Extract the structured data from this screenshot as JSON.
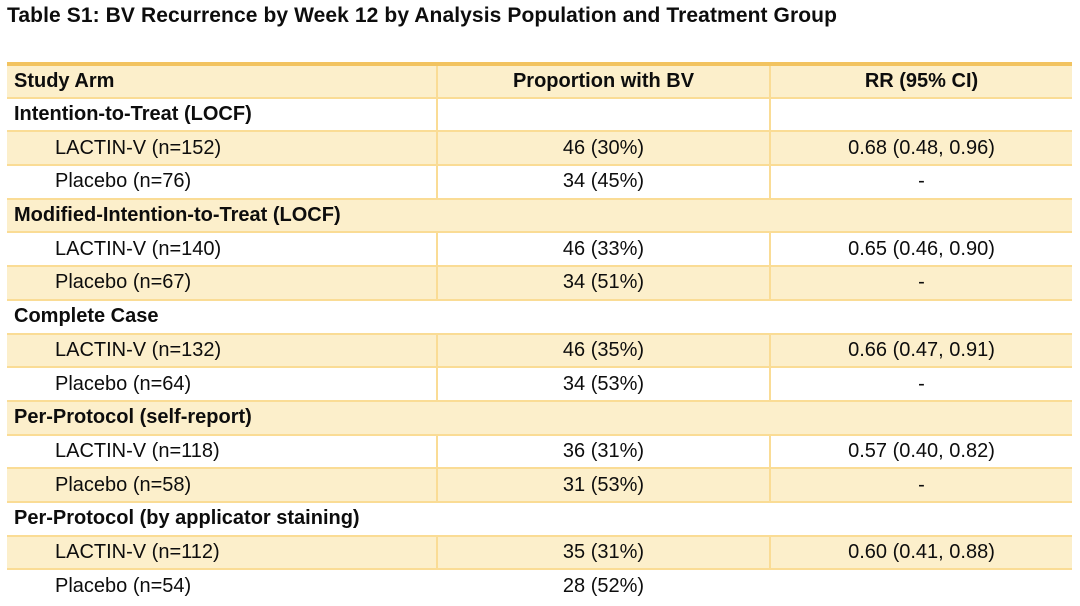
{
  "title": "Table S1: BV Recurrence by Week 12 by Analysis Population and Treatment Group",
  "colors": {
    "row_band": "#FCEFCB",
    "grid_line": "#FADC95",
    "top_border": "#F2C360",
    "text": "#0D0D0D"
  },
  "table": {
    "columns": [
      "Study Arm",
      "Proportion with BV",
      "RR (95% CI)"
    ],
    "sections": [
      {
        "label": "Intention-to-Treat (LOCF)",
        "rows": [
          {
            "arm": "LACTIN-V (n=152)",
            "proportion": "46 (30%)",
            "rr": "0.68 (0.48, 0.96)"
          },
          {
            "arm": "Placebo (n=76)",
            "proportion": "34 (45%)",
            "rr": "-"
          }
        ]
      },
      {
        "label": "Modified-Intention-to-Treat (LOCF)",
        "rows": [
          {
            "arm": "LACTIN-V (n=140)",
            "proportion": "46 (33%)",
            "rr": "0.65 (0.46, 0.90)"
          },
          {
            "arm": "Placebo (n=67)",
            "proportion": "34 (51%)",
            "rr": "-"
          }
        ]
      },
      {
        "label": "Complete Case",
        "rows": [
          {
            "arm": "LACTIN-V (n=132)",
            "proportion": "46 (35%)",
            "rr": "0.66 (0.47, 0.91)"
          },
          {
            "arm": "Placebo (n=64)",
            "proportion": "34 (53%)",
            "rr": "-"
          }
        ]
      },
      {
        "label": "Per-Protocol (self-report)",
        "rows": [
          {
            "arm": "LACTIN-V (n=118)",
            "proportion": "36 (31%)",
            "rr": "0.57 (0.40, 0.82)"
          },
          {
            "arm": "Placebo (n=58)",
            "proportion": "31 (53%)",
            "rr": "-"
          }
        ]
      },
      {
        "label": "Per-Protocol (by applicator staining)",
        "rows": [
          {
            "arm": "LACTIN-V (n=112)",
            "proportion": "35 (31%)",
            "rr": "0.60 (0.41, 0.88)"
          },
          {
            "arm": "Placebo (n=54)",
            "proportion": "28 (52%)",
            "rr": ""
          }
        ]
      }
    ]
  }
}
